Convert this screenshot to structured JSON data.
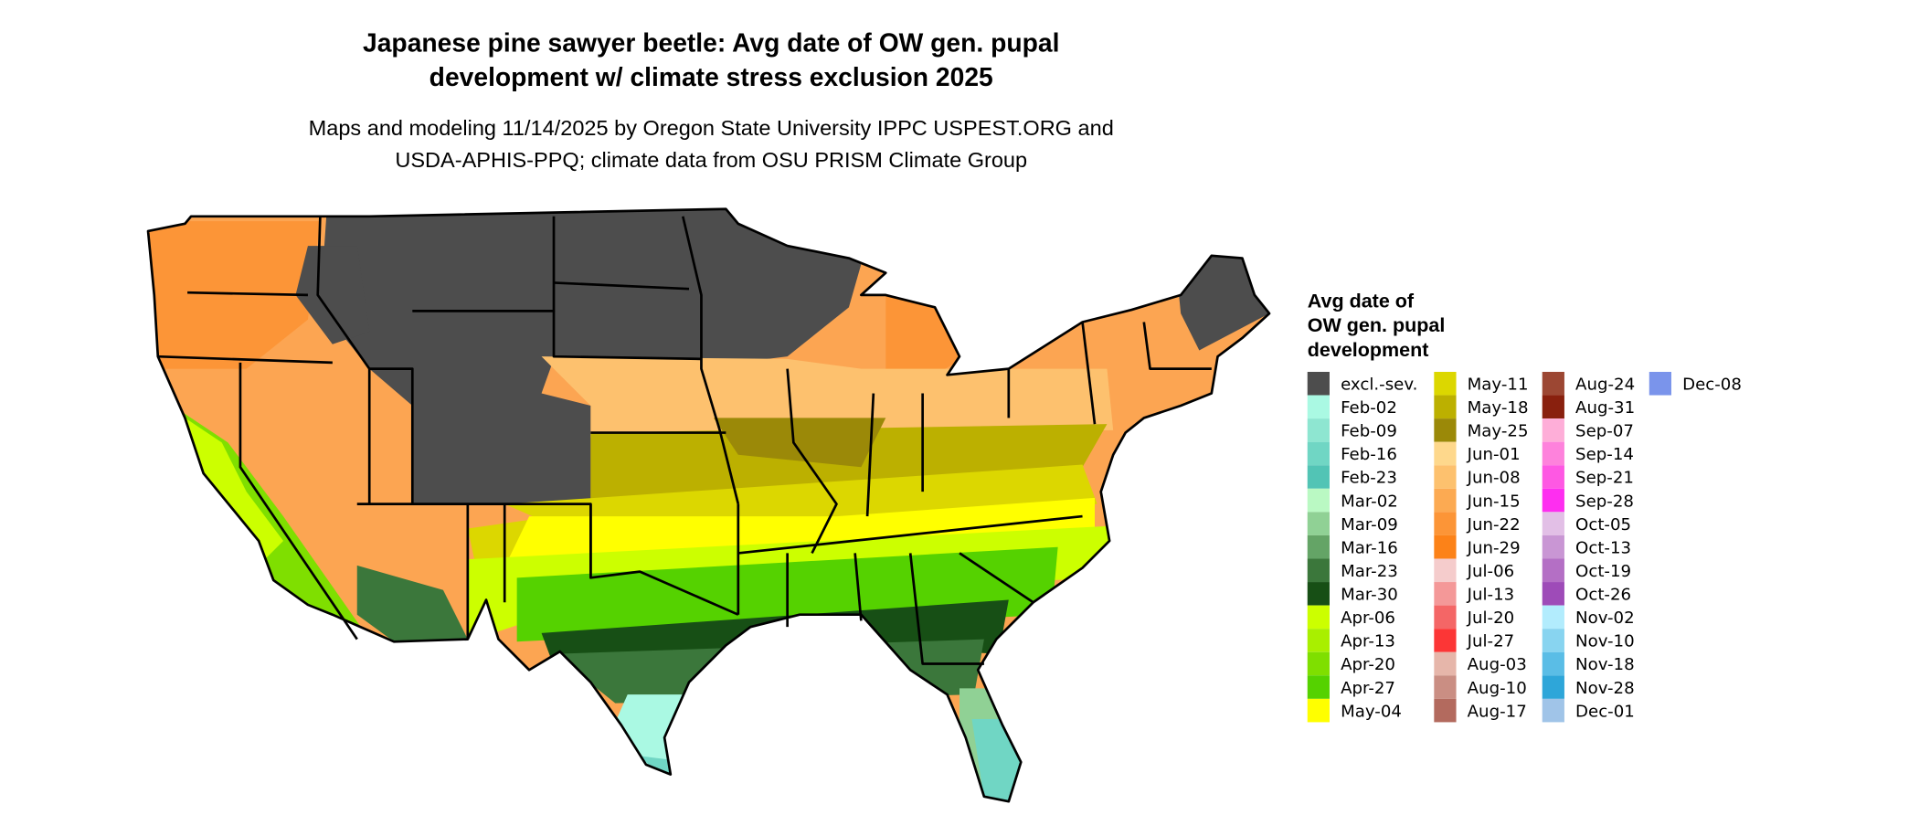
{
  "title": {
    "line1": "Japanese pine sawyer beetle: Avg date of OW gen. pupal",
    "line2": "development w/ climate stress exclusion 2025"
  },
  "subtitle": {
    "line1": "Maps and modeling 11/14/2025 by Oregon State University IPPC USPEST.ORG and",
    "line2": "USDA-APHIS-PPQ; climate data from OSU PRISM Climate Group"
  },
  "legend": {
    "title": [
      "Avg date of",
      "OW gen. pupal",
      "development"
    ],
    "items": [
      {
        "label": "excl.-sev.",
        "color": "#4d4d4d"
      },
      {
        "label": "Feb-02",
        "color": "#aaf9e3"
      },
      {
        "label": "Feb-09",
        "color": "#8ee6d1"
      },
      {
        "label": "Feb-16",
        "color": "#70d6c4"
      },
      {
        "label": "Feb-23",
        "color": "#52c4b5"
      },
      {
        "label": "Mar-02",
        "color": "#baf9c3"
      },
      {
        "label": "Mar-09",
        "color": "#90d195"
      },
      {
        "label": "Mar-16",
        "color": "#64a466"
      },
      {
        "label": "Mar-23",
        "color": "#3b773b"
      },
      {
        "label": "Mar-30",
        "color": "#174f15"
      },
      {
        "label": "Apr-06",
        "color": "#ccff00"
      },
      {
        "label": "Apr-13",
        "color": "#a9ef00"
      },
      {
        "label": "Apr-20",
        "color": "#7fdf00"
      },
      {
        "label": "Apr-27",
        "color": "#55d200"
      },
      {
        "label": "May-04",
        "color": "#ffff00"
      },
      {
        "label": "May-11",
        "color": "#dcd700"
      },
      {
        "label": "May-18",
        "color": "#bcb000"
      },
      {
        "label": "May-25",
        "color": "#9b8908"
      },
      {
        "label": "Jun-01",
        "color": "#fed88c"
      },
      {
        "label": "Jun-08",
        "color": "#fdc16e"
      },
      {
        "label": "Jun-15",
        "color": "#fcaa52"
      },
      {
        "label": "Jun-22",
        "color": "#fc9537"
      },
      {
        "label": "Jun-29",
        "color": "#fc8218"
      },
      {
        "label": "Jul-06",
        "color": "#f5cccc"
      },
      {
        "label": "Jul-13",
        "color": "#f49898"
      },
      {
        "label": "Jul-20",
        "color": "#f46666"
      },
      {
        "label": "Jul-27",
        "color": "#fc3636"
      },
      {
        "label": "Aug-03",
        "color": "#e6b6aa"
      },
      {
        "label": "Aug-10",
        "color": "#ca8e83"
      },
      {
        "label": "Aug-17",
        "color": "#b36a5e"
      },
      {
        "label": "Aug-24",
        "color": "#9c4733"
      },
      {
        "label": "Aug-31",
        "color": "#89200e"
      },
      {
        "label": "Sep-07",
        "color": "#feaed8"
      },
      {
        "label": "Sep-14",
        "color": "#fe82dc"
      },
      {
        "label": "Sep-21",
        "color": "#fe58e3"
      },
      {
        "label": "Sep-28",
        "color": "#fe2ef0"
      },
      {
        "label": "Oct-05",
        "color": "#e2bfe6"
      },
      {
        "label": "Oct-13",
        "color": "#c996d4"
      },
      {
        "label": "Oct-19",
        "color": "#b46fc5"
      },
      {
        "label": "Oct-26",
        "color": "#9e4bb8"
      },
      {
        "label": "Nov-02",
        "color": "#b2ecfd"
      },
      {
        "label": "Nov-10",
        "color": "#88d4f0"
      },
      {
        "label": "Nov-18",
        "color": "#5abde6"
      },
      {
        "label": "Nov-28",
        "color": "#2ea6d9"
      },
      {
        "label": "Dec-01",
        "color": "#a0c4e8"
      },
      {
        "label": "Dec-08",
        "color": "#7a94eb"
      }
    ]
  }
}
